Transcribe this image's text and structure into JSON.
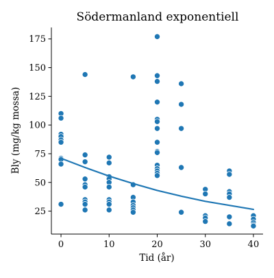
{
  "chart_data": {
    "type": "scatter",
    "title": "Södermanland exponentiell",
    "xlabel": "Tid (år)",
    "ylabel": "Bly (mg/kg mossa)",
    "xlim": [
      -2,
      42
    ],
    "ylim": [
      5,
      185
    ],
    "x_ticks": [
      0,
      10,
      20,
      30,
      40
    ],
    "y_ticks": [
      25,
      50,
      75,
      100,
      125,
      150,
      175
    ],
    "grid": false,
    "colors": {
      "points": "#1f77b4",
      "point_edge": "#ffffff",
      "fit_line": "#1f77b4",
      "axis": "#000000"
    },
    "points": [
      {
        "x": 0,
        "y": 110
      },
      {
        "x": 0,
        "y": 106
      },
      {
        "x": 0,
        "y": 92
      },
      {
        "x": 0,
        "y": 90
      },
      {
        "x": 0,
        "y": 87
      },
      {
        "x": 0,
        "y": 85
      },
      {
        "x": 0,
        "y": 71
      },
      {
        "x": 0,
        "y": 70
      },
      {
        "x": 0,
        "y": 66
      },
      {
        "x": 0,
        "y": 31
      },
      {
        "x": 5,
        "y": 144
      },
      {
        "x": 5,
        "y": 74
      },
      {
        "x": 5,
        "y": 68
      },
      {
        "x": 5,
        "y": 53
      },
      {
        "x": 5,
        "y": 48
      },
      {
        "x": 5,
        "y": 46
      },
      {
        "x": 5,
        "y": 35
      },
      {
        "x": 5,
        "y": 33
      },
      {
        "x": 5,
        "y": 31
      },
      {
        "x": 5,
        "y": 26
      },
      {
        "x": 10,
        "y": 72
      },
      {
        "x": 10,
        "y": 67
      },
      {
        "x": 10,
        "y": 55
      },
      {
        "x": 10,
        "y": 53
      },
      {
        "x": 10,
        "y": 50
      },
      {
        "x": 10,
        "y": 46
      },
      {
        "x": 10,
        "y": 35
      },
      {
        "x": 10,
        "y": 33
      },
      {
        "x": 10,
        "y": 31
      },
      {
        "x": 10,
        "y": 26
      },
      {
        "x": 15,
        "y": 142
      },
      {
        "x": 15,
        "y": 48
      },
      {
        "x": 15,
        "y": 37
      },
      {
        "x": 15,
        "y": 33
      },
      {
        "x": 15,
        "y": 30
      },
      {
        "x": 15,
        "y": 28
      },
      {
        "x": 15,
        "y": 26
      },
      {
        "x": 15,
        "y": 24
      },
      {
        "x": 20,
        "y": 177
      },
      {
        "x": 20,
        "y": 143
      },
      {
        "x": 20,
        "y": 138
      },
      {
        "x": 20,
        "y": 120
      },
      {
        "x": 20,
        "y": 105
      },
      {
        "x": 20,
        "y": 103
      },
      {
        "x": 20,
        "y": 97
      },
      {
        "x": 20,
        "y": 85
      },
      {
        "x": 20,
        "y": 77
      },
      {
        "x": 20,
        "y": 76
      },
      {
        "x": 20,
        "y": 65
      },
      {
        "x": 20,
        "y": 62
      },
      {
        "x": 20,
        "y": 60
      },
      {
        "x": 20,
        "y": 58
      },
      {
        "x": 20,
        "y": 56
      },
      {
        "x": 25,
        "y": 136
      },
      {
        "x": 25,
        "y": 118
      },
      {
        "x": 25,
        "y": 97
      },
      {
        "x": 25,
        "y": 63
      },
      {
        "x": 25,
        "y": 24
      },
      {
        "x": 30,
        "y": 44
      },
      {
        "x": 30,
        "y": 40
      },
      {
        "x": 30,
        "y": 21
      },
      {
        "x": 30,
        "y": 19
      },
      {
        "x": 30,
        "y": 16
      },
      {
        "x": 35,
        "y": 60
      },
      {
        "x": 35,
        "y": 57
      },
      {
        "x": 35,
        "y": 42
      },
      {
        "x": 35,
        "y": 40
      },
      {
        "x": 35,
        "y": 37
      },
      {
        "x": 35,
        "y": 20
      },
      {
        "x": 35,
        "y": 14
      },
      {
        "x": 40,
        "y": 21
      },
      {
        "x": 40,
        "y": 18
      },
      {
        "x": 40,
        "y": 15
      },
      {
        "x": 40,
        "y": 13
      },
      {
        "x": 40,
        "y": 12
      }
    ],
    "fit_line": {
      "x": [
        0,
        5,
        10,
        15,
        20,
        25,
        30,
        35,
        40
      ],
      "y": [
        71,
        63,
        55.5,
        49,
        43,
        38,
        33.5,
        30,
        26.5
      ]
    }
  }
}
